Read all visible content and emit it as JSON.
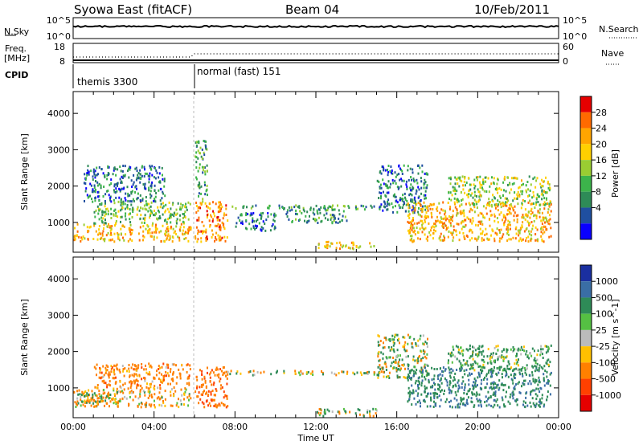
{
  "header": {
    "station": "Syowa East (fitACF)",
    "beam": "Beam 04",
    "date": "10/Feb/2011"
  },
  "top_panels": {
    "nsky_label": "N.Sky",
    "nsky_ticks": [
      "10^5",
      "10^0"
    ],
    "nsearch_label": "N.Search",
    "nsearch_ticks": [
      "10^5",
      "10^0"
    ],
    "freq_label": "Freq.",
    "freq_unit": "[MHz]",
    "freq_ticks": [
      "18",
      "8"
    ],
    "nave_label": "Nave",
    "nave_ticks": [
      "60",
      "0"
    ],
    "cpid_label": "CPID",
    "modes": [
      {
        "label": "themis 3300",
        "start_hour": 0
      },
      {
        "label": "normal (fast) 151",
        "start_hour": 6
      }
    ]
  },
  "chart_data": [
    {
      "type": "heatmap",
      "name": "power",
      "ylabel": "Slant Range [km]",
      "ylim": [
        180,
        4600
      ],
      "yticks": [
        1000,
        2000,
        3000,
        4000
      ],
      "xlim": [
        0,
        24
      ],
      "xticks": [
        "00:00",
        "04:00",
        "08:00",
        "12:00",
        "16:00",
        "20:00",
        "00:00"
      ],
      "colorbar": {
        "label": "Power [dB]",
        "ticks": [
          "28",
          "24",
          "20",
          "16",
          "12",
          "8",
          "4"
        ],
        "colors": [
          "#e60000",
          "#ff6a00",
          "#ffa500",
          "#ffd000",
          "#9acd32",
          "#3cb44b",
          "#2e8b57",
          "#1f4fa0",
          "#0a00ff"
        ]
      },
      "regions": [
        {
          "x0": 0.0,
          "x1": 5.8,
          "y0": 500,
          "y1": 1000,
          "level": 20
        },
        {
          "x0": 1.0,
          "x1": 5.8,
          "y0": 1000,
          "y1": 1600,
          "level": 12
        },
        {
          "x0": 0.5,
          "x1": 4.5,
          "y0": 1600,
          "y1": 2600,
          "level": 6
        },
        {
          "x0": 6.0,
          "x1": 7.6,
          "y0": 500,
          "y1": 1600,
          "level": 22
        },
        {
          "x0": 6.0,
          "x1": 6.6,
          "y0": 1600,
          "y1": 3300,
          "level": 10
        },
        {
          "x0": 7.6,
          "x1": 15.0,
          "y0": 1380,
          "y1": 1500,
          "level": 10
        },
        {
          "x0": 8.0,
          "x1": 10.0,
          "y0": 800,
          "y1": 1300,
          "level": 6
        },
        {
          "x0": 10.5,
          "x1": 13.5,
          "y0": 1000,
          "y1": 1400,
          "level": 8
        },
        {
          "x0": 12.0,
          "x1": 15.0,
          "y0": 300,
          "y1": 500,
          "level": 18
        },
        {
          "x0": 15.0,
          "x1": 17.5,
          "y0": 1300,
          "y1": 2600,
          "level": 6
        },
        {
          "x0": 16.5,
          "x1": 23.6,
          "y0": 500,
          "y1": 1600,
          "level": 20
        },
        {
          "x0": 18.5,
          "x1": 23.6,
          "y0": 1500,
          "y1": 2300,
          "level": 14
        }
      ]
    },
    {
      "type": "heatmap",
      "name": "velocity",
      "ylabel": "Slant Range [km]",
      "ylim": [
        180,
        4600
      ],
      "yticks": [
        1000,
        2000,
        3000,
        4000
      ],
      "xlim": [
        0,
        24
      ],
      "xticks": [
        "00:00",
        "04:00",
        "08:00",
        "12:00",
        "16:00",
        "20:00",
        "00:00"
      ],
      "xlabel": "Time UT",
      "colorbar": {
        "label": "Velocity [m s^-1]",
        "ticks": [
          "1000",
          "500",
          "100",
          "25",
          "-25",
          "-100",
          "-500",
          "-1000"
        ],
        "colors": [
          "#1a2fa0",
          "#3a6ea5",
          "#2e8b57",
          "#55c043",
          "#bbbbbb",
          "#ffc000",
          "#ff8000",
          "#ff4000",
          "#e60000"
        ]
      },
      "regions": [
        {
          "x0": 0.0,
          "x1": 5.8,
          "y0": 500,
          "y1": 1000,
          "level": -150
        },
        {
          "x0": 1.0,
          "x1": 5.8,
          "y0": 1000,
          "y1": 1700,
          "level": -300
        },
        {
          "x0": 0.2,
          "x1": 2.0,
          "y0": 600,
          "y1": 900,
          "level": 0
        },
        {
          "x0": 6.0,
          "x1": 7.6,
          "y0": 500,
          "y1": 1600,
          "level": -400
        },
        {
          "x0": 7.6,
          "x1": 15.0,
          "y0": 1380,
          "y1": 1500,
          "level": 0
        },
        {
          "x0": 12.0,
          "x1": 15.0,
          "y0": 250,
          "y1": 450,
          "level": 0
        },
        {
          "x0": 15.0,
          "x1": 17.5,
          "y0": 1300,
          "y1": 2500,
          "level": 80
        },
        {
          "x0": 16.5,
          "x1": 23.6,
          "y0": 500,
          "y1": 1600,
          "level": 400
        },
        {
          "x0": 18.5,
          "x1": 23.6,
          "y0": 1500,
          "y1": 2200,
          "level": 200
        }
      ]
    }
  ]
}
